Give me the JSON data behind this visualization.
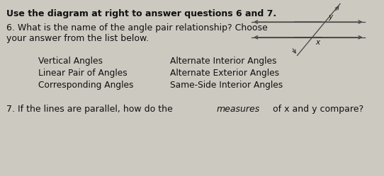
{
  "background_color": "#ccc9c0",
  "title_text": "Use the diagram at right to answer questions 6 and 7.",
  "title_fontsize": 9.0,
  "q6_line1": "6. What is the name of the angle pair relationship? Choose",
  "q6_line2": "your answer from the list below.",
  "q6_fontsize": 9.0,
  "q7_prefix": "7. If the lines are parallel, how do the ",
  "q7_italic": "measures",
  "q7_suffix": " of x and y compare?",
  "q7_fontsize": 9.0,
  "col1_items": [
    "Vertical Angles",
    "Linear Pair of Angles",
    "Corresponding Angles"
  ],
  "col2_items": [
    "Alternate Interior Angles",
    "Alternate Exterior Angles",
    "Same-Side Interior Angles"
  ],
  "list_fontsize": 8.8,
  "label_y": "y",
  "label_x": "x",
  "line_color": "#444444",
  "text_color": "#111111"
}
